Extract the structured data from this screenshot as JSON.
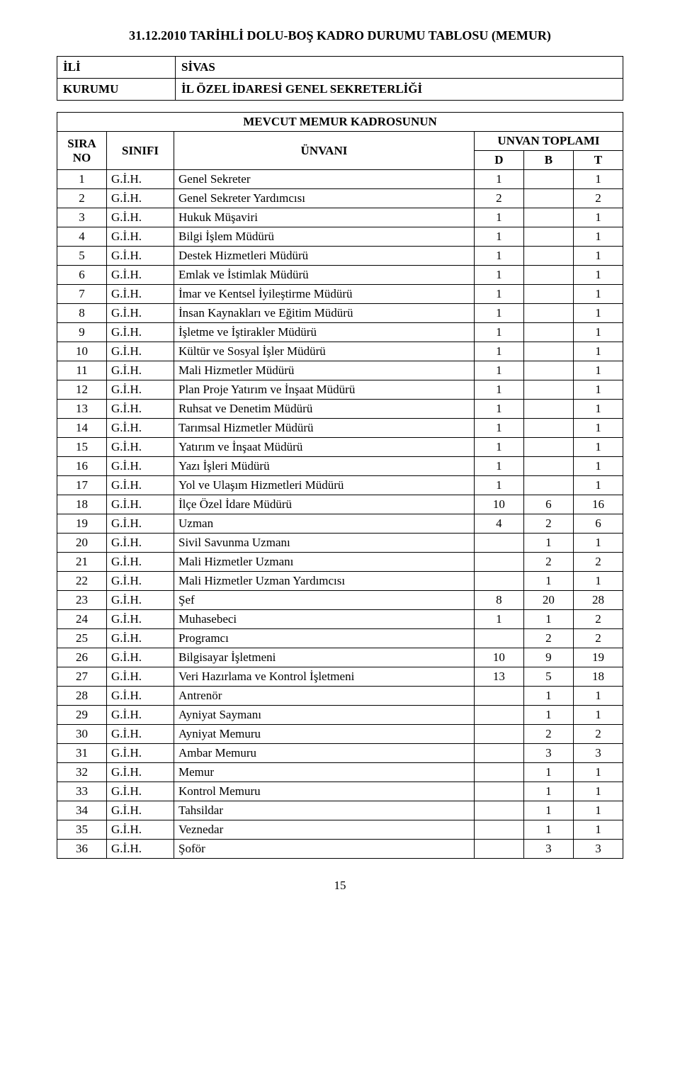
{
  "title": "31.12.2010 TARİHLİ DOLU-BOŞ KADRO DURUMU TABLOSU  (MEMUR)",
  "header": {
    "ili_label": "İLİ",
    "ili_value": "SİVAS",
    "kurumu_label": "KURUMU",
    "kurumu_value": "İL ÖZEL İDARESİ GENEL SEKRETERLİĞİ"
  },
  "table_headings": {
    "mevcut": "MEVCUT MEMUR KADROSUNUN",
    "sira_no": "SIRA NO",
    "sinifi": "SINIFI",
    "unvani": "ÜNVANI",
    "unvan_toplami": "UNVAN TOPLAMI",
    "d": "D",
    "b": "B",
    "t": "T"
  },
  "rows": [
    {
      "no": "1",
      "sinif": "G.İ.H.",
      "unvan": "Genel Sekreter",
      "d": "1",
      "b": "",
      "t": "1"
    },
    {
      "no": "2",
      "sinif": "G.İ.H.",
      "unvan": "Genel Sekreter Yardımcısı",
      "d": "2",
      "b": "",
      "t": "2"
    },
    {
      "no": "3",
      "sinif": "G.İ.H.",
      "unvan": "Hukuk Müşaviri",
      "d": "1",
      "b": "",
      "t": "1"
    },
    {
      "no": "4",
      "sinif": "G.İ.H.",
      "unvan": "Bilgi İşlem Müdürü",
      "d": "1",
      "b": "",
      "t": "1"
    },
    {
      "no": "5",
      "sinif": "G.İ.H.",
      "unvan": "Destek Hizmetleri Müdürü",
      "d": "1",
      "b": "",
      "t": "1"
    },
    {
      "no": "6",
      "sinif": "G.İ.H.",
      "unvan": "Emlak ve İstimlak Müdürü",
      "d": "1",
      "b": "",
      "t": "1"
    },
    {
      "no": "7",
      "sinif": "G.İ.H.",
      "unvan": "İmar ve Kentsel İyileştirme Müdürü",
      "d": "1",
      "b": "",
      "t": "1"
    },
    {
      "no": "8",
      "sinif": "G.İ.H.",
      "unvan": "İnsan Kaynakları ve Eğitim Müdürü",
      "d": "1",
      "b": "",
      "t": "1"
    },
    {
      "no": "9",
      "sinif": "G.İ.H.",
      "unvan": "İşletme ve İştirakler Müdürü",
      "d": "1",
      "b": "",
      "t": "1"
    },
    {
      "no": "10",
      "sinif": "G.İ.H.",
      "unvan": "Kültür ve Sosyal İşler Müdürü",
      "d": "1",
      "b": "",
      "t": "1"
    },
    {
      "no": "11",
      "sinif": "G.İ.H.",
      "unvan": "Mali Hizmetler Müdürü",
      "d": "1",
      "b": "",
      "t": "1"
    },
    {
      "no": "12",
      "sinif": "G.İ.H.",
      "unvan": "Plan Proje Yatırım ve İnşaat Müdürü",
      "d": "1",
      "b": "",
      "t": "1"
    },
    {
      "no": "13",
      "sinif": "G.İ.H.",
      "unvan": "Ruhsat ve Denetim Müdürü",
      "d": "1",
      "b": "",
      "t": "1"
    },
    {
      "no": "14",
      "sinif": "G.İ.H.",
      "unvan": "Tarımsal Hizmetler Müdürü",
      "d": "1",
      "b": "",
      "t": "1"
    },
    {
      "no": "15",
      "sinif": "G.İ.H.",
      "unvan": "Yatırım ve İnşaat Müdürü",
      "d": "1",
      "b": "",
      "t": "1"
    },
    {
      "no": "16",
      "sinif": "G.İ.H.",
      "unvan": "Yazı İşleri Müdürü",
      "d": "1",
      "b": "",
      "t": "1"
    },
    {
      "no": "17",
      "sinif": "G.İ.H.",
      "unvan": "Yol ve Ulaşım Hizmetleri Müdürü",
      "d": "1",
      "b": "",
      "t": "1"
    },
    {
      "no": "18",
      "sinif": "G.İ.H.",
      "unvan": "İlçe Özel İdare Müdürü",
      "d": "10",
      "b": "6",
      "t": "16"
    },
    {
      "no": "19",
      "sinif": "G.İ.H.",
      "unvan": "Uzman",
      "d": "4",
      "b": "2",
      "t": "6"
    },
    {
      "no": "20",
      "sinif": "G.İ.H.",
      "unvan": "Sivil Savunma Uzmanı",
      "d": "",
      "b": "1",
      "t": "1"
    },
    {
      "no": "21",
      "sinif": "G.İ.H.",
      "unvan": "Mali Hizmetler Uzmanı",
      "d": "",
      "b": "2",
      "t": "2"
    },
    {
      "no": "22",
      "sinif": "G.İ.H.",
      "unvan": "Mali Hizmetler Uzman Yardımcısı",
      "d": "",
      "b": "1",
      "t": "1"
    },
    {
      "no": "23",
      "sinif": "G.İ.H.",
      "unvan": "Şef",
      "d": "8",
      "b": "20",
      "t": "28"
    },
    {
      "no": "24",
      "sinif": "G.İ.H.",
      "unvan": "Muhasebeci",
      "d": "1",
      "b": "1",
      "t": "2"
    },
    {
      "no": "25",
      "sinif": "G.İ.H.",
      "unvan": "Programcı",
      "d": "",
      "b": "2",
      "t": "2"
    },
    {
      "no": "26",
      "sinif": "G.İ.H.",
      "unvan": "Bilgisayar İşletmeni",
      "d": "10",
      "b": "9",
      "t": "19"
    },
    {
      "no": "27",
      "sinif": "G.İ.H.",
      "unvan": "Veri Hazırlama ve Kontrol İşletmeni",
      "d": "13",
      "b": "5",
      "t": "18"
    },
    {
      "no": "28",
      "sinif": "G.İ.H.",
      "unvan": "Antrenör",
      "d": "",
      "b": "1",
      "t": "1"
    },
    {
      "no": "29",
      "sinif": "G.İ.H.",
      "unvan": "Ayniyat Saymanı",
      "d": "",
      "b": "1",
      "t": "1"
    },
    {
      "no": "30",
      "sinif": "G.İ.H.",
      "unvan": "Ayniyat Memuru",
      "d": "",
      "b": "2",
      "t": "2"
    },
    {
      "no": "31",
      "sinif": "G.İ.H.",
      "unvan": "Ambar Memuru",
      "d": "",
      "b": "3",
      "t": "3"
    },
    {
      "no": "32",
      "sinif": "G.İ.H.",
      "unvan": "Memur",
      "d": "",
      "b": "1",
      "t": "1"
    },
    {
      "no": "33",
      "sinif": "G.İ.H.",
      "unvan": "Kontrol Memuru",
      "d": "",
      "b": "1",
      "t": "1"
    },
    {
      "no": "34",
      "sinif": "G.İ.H.",
      "unvan": "Tahsildar",
      "d": "",
      "b": "1",
      "t": "1"
    },
    {
      "no": "35",
      "sinif": "G.İ.H.",
      "unvan": "Veznedar",
      "d": "",
      "b": "1",
      "t": "1"
    },
    {
      "no": "36",
      "sinif": "G.İ.H.",
      "unvan": "Şoför",
      "d": "",
      "b": "3",
      "t": "3"
    }
  ],
  "page_number": "15"
}
